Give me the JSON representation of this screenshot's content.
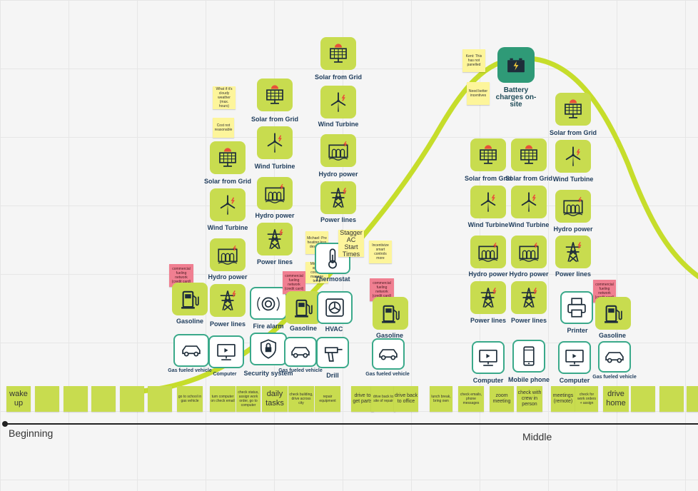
{
  "colors": {
    "lime": "#c8dc4f",
    "teal": "#3aa98a",
    "navy": "#1e3c5c",
    "sticky_yellow": "#fdf59b",
    "sticky_pink": "#f07f91",
    "curve": "#c6dd2b"
  },
  "phases": {
    "beginning": "Beginning",
    "middle": "Middle"
  },
  "steps": {
    "wake_up": "wake up",
    "go_to_school": "go to school in gas vehicle",
    "turn_computer": "turn computer on check email",
    "check_status": "check status, assign work order, go to computer",
    "daily_tasks": "daily tasks",
    "check_building": "check building, drive across city",
    "repair_equipment": "repair equipment",
    "drive_get_parts": "drive to get parts",
    "drive_back_site": "drive back to site of repair",
    "drive_back_office": "drive back to office",
    "lunch_break": "lunch break, bring own",
    "check_emails": "check emails, phone messages",
    "zoom_meeting": "zoom meeting",
    "check_crew": "check with crew in person",
    "meetings_remote": "meetings (remote)",
    "check_work_orders": "check for work orders + assign",
    "drive_home": "drive home"
  },
  "labels": {
    "solar": "Solar from Grid",
    "wind": "Wind Turbine",
    "hydro": "Hydro power",
    "power": "Power lines",
    "gasoline": "Gasoline",
    "gas_vehicle": "Gas fueled vehicle",
    "computer": "Computer",
    "fire_alarm": "Fire alarm",
    "security": "Security system",
    "hvac": "HVAC",
    "drill": "Drill",
    "thermostat": "Thermostat",
    "mobile_phone": "Mobile phone",
    "printer": "Printer",
    "battery": "Battery charges on-site"
  },
  "icons": [
    "solar-panel-icon",
    "wind-turbine-icon",
    "hydro-dam-icon",
    "power-tower-icon",
    "gas-pump-icon",
    "car-icon",
    "computer-icon",
    "fire-alarm-icon",
    "security-shield-icon",
    "hvac-fan-icon",
    "drill-icon",
    "thermostat-icon",
    "mobile-phone-icon",
    "printer-icon",
    "battery-icon"
  ],
  "notes": {
    "commercial_fueling": "commercial fueling network (credit card)",
    "cloudy": "What if it's cloudy weather (max. hours)",
    "cost_not_reasonable": "Cost not reasonable",
    "michael_pre_heating": "Michael: Pre heating less desirable",
    "michael_smart": "Michael: smart controls manage temp",
    "stagger_ac": "Stagger AC Start Times",
    "incentivize_smart": "Incentivize smart controls more",
    "kent": "Kent: This has not panelled",
    "need_incentives": "Need better incentives"
  }
}
